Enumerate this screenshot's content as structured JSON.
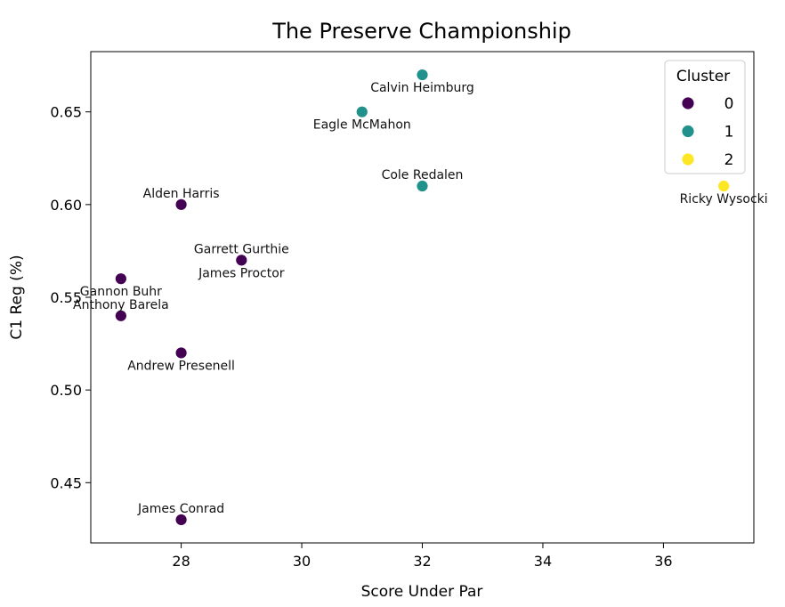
{
  "chart_data": {
    "type": "scatter",
    "title": "The Preserve Championship",
    "xlabel": "Score Under Par",
    "ylabel": "C1 Reg (%)",
    "xlim": [
      26.5,
      37.5
    ],
    "ylim": [
      0.4175,
      0.6825
    ],
    "xticks": [
      28,
      30,
      32,
      34,
      36
    ],
    "yticks": [
      0.45,
      0.5,
      0.55,
      0.6,
      0.65
    ],
    "ytick_labels": [
      "0.45",
      "0.50",
      "0.55",
      "0.60",
      "0.65"
    ],
    "grid": false,
    "legend": {
      "title": "Cluster",
      "placement": "top-right",
      "entries": [
        {
          "label": "0",
          "color": "#440154"
        },
        {
          "label": "1",
          "color": "#21918c"
        },
        {
          "label": "2",
          "color": "#fde725"
        }
      ]
    },
    "points": [
      {
        "name": "Calvin Heimburg",
        "x": 32,
        "y": 0.67,
        "cluster": 1,
        "label_pos": "below"
      },
      {
        "name": "Eagle McMahon",
        "x": 31,
        "y": 0.65,
        "cluster": 1,
        "label_pos": "below"
      },
      {
        "name": "Cole Redalen",
        "x": 32,
        "y": 0.61,
        "cluster": 1,
        "label_pos": "above"
      },
      {
        "name": "Ricky Wysocki",
        "x": 37,
        "y": 0.61,
        "cluster": 2,
        "label_pos": "below"
      },
      {
        "name": "Alden Harris",
        "x": 28,
        "y": 0.6,
        "cluster": 0,
        "label_pos": "above"
      },
      {
        "name": "Garrett Gurthie",
        "x": 29,
        "y": 0.57,
        "cluster": 0,
        "label_pos": "above"
      },
      {
        "name": "James Proctor",
        "x": 29,
        "y": 0.57,
        "cluster": 0,
        "label_pos": "below"
      },
      {
        "name": "Gannon Buhr",
        "x": 27,
        "y": 0.56,
        "cluster": 0,
        "label_pos": "below"
      },
      {
        "name": "Anthony Barela",
        "x": 27,
        "y": 0.54,
        "cluster": 0,
        "label_pos": "above"
      },
      {
        "name": "Andrew Presenell",
        "x": 28,
        "y": 0.52,
        "cluster": 0,
        "label_pos": "below"
      },
      {
        "name": "James Conrad",
        "x": 28,
        "y": 0.43,
        "cluster": 0,
        "label_pos": "above"
      }
    ]
  }
}
